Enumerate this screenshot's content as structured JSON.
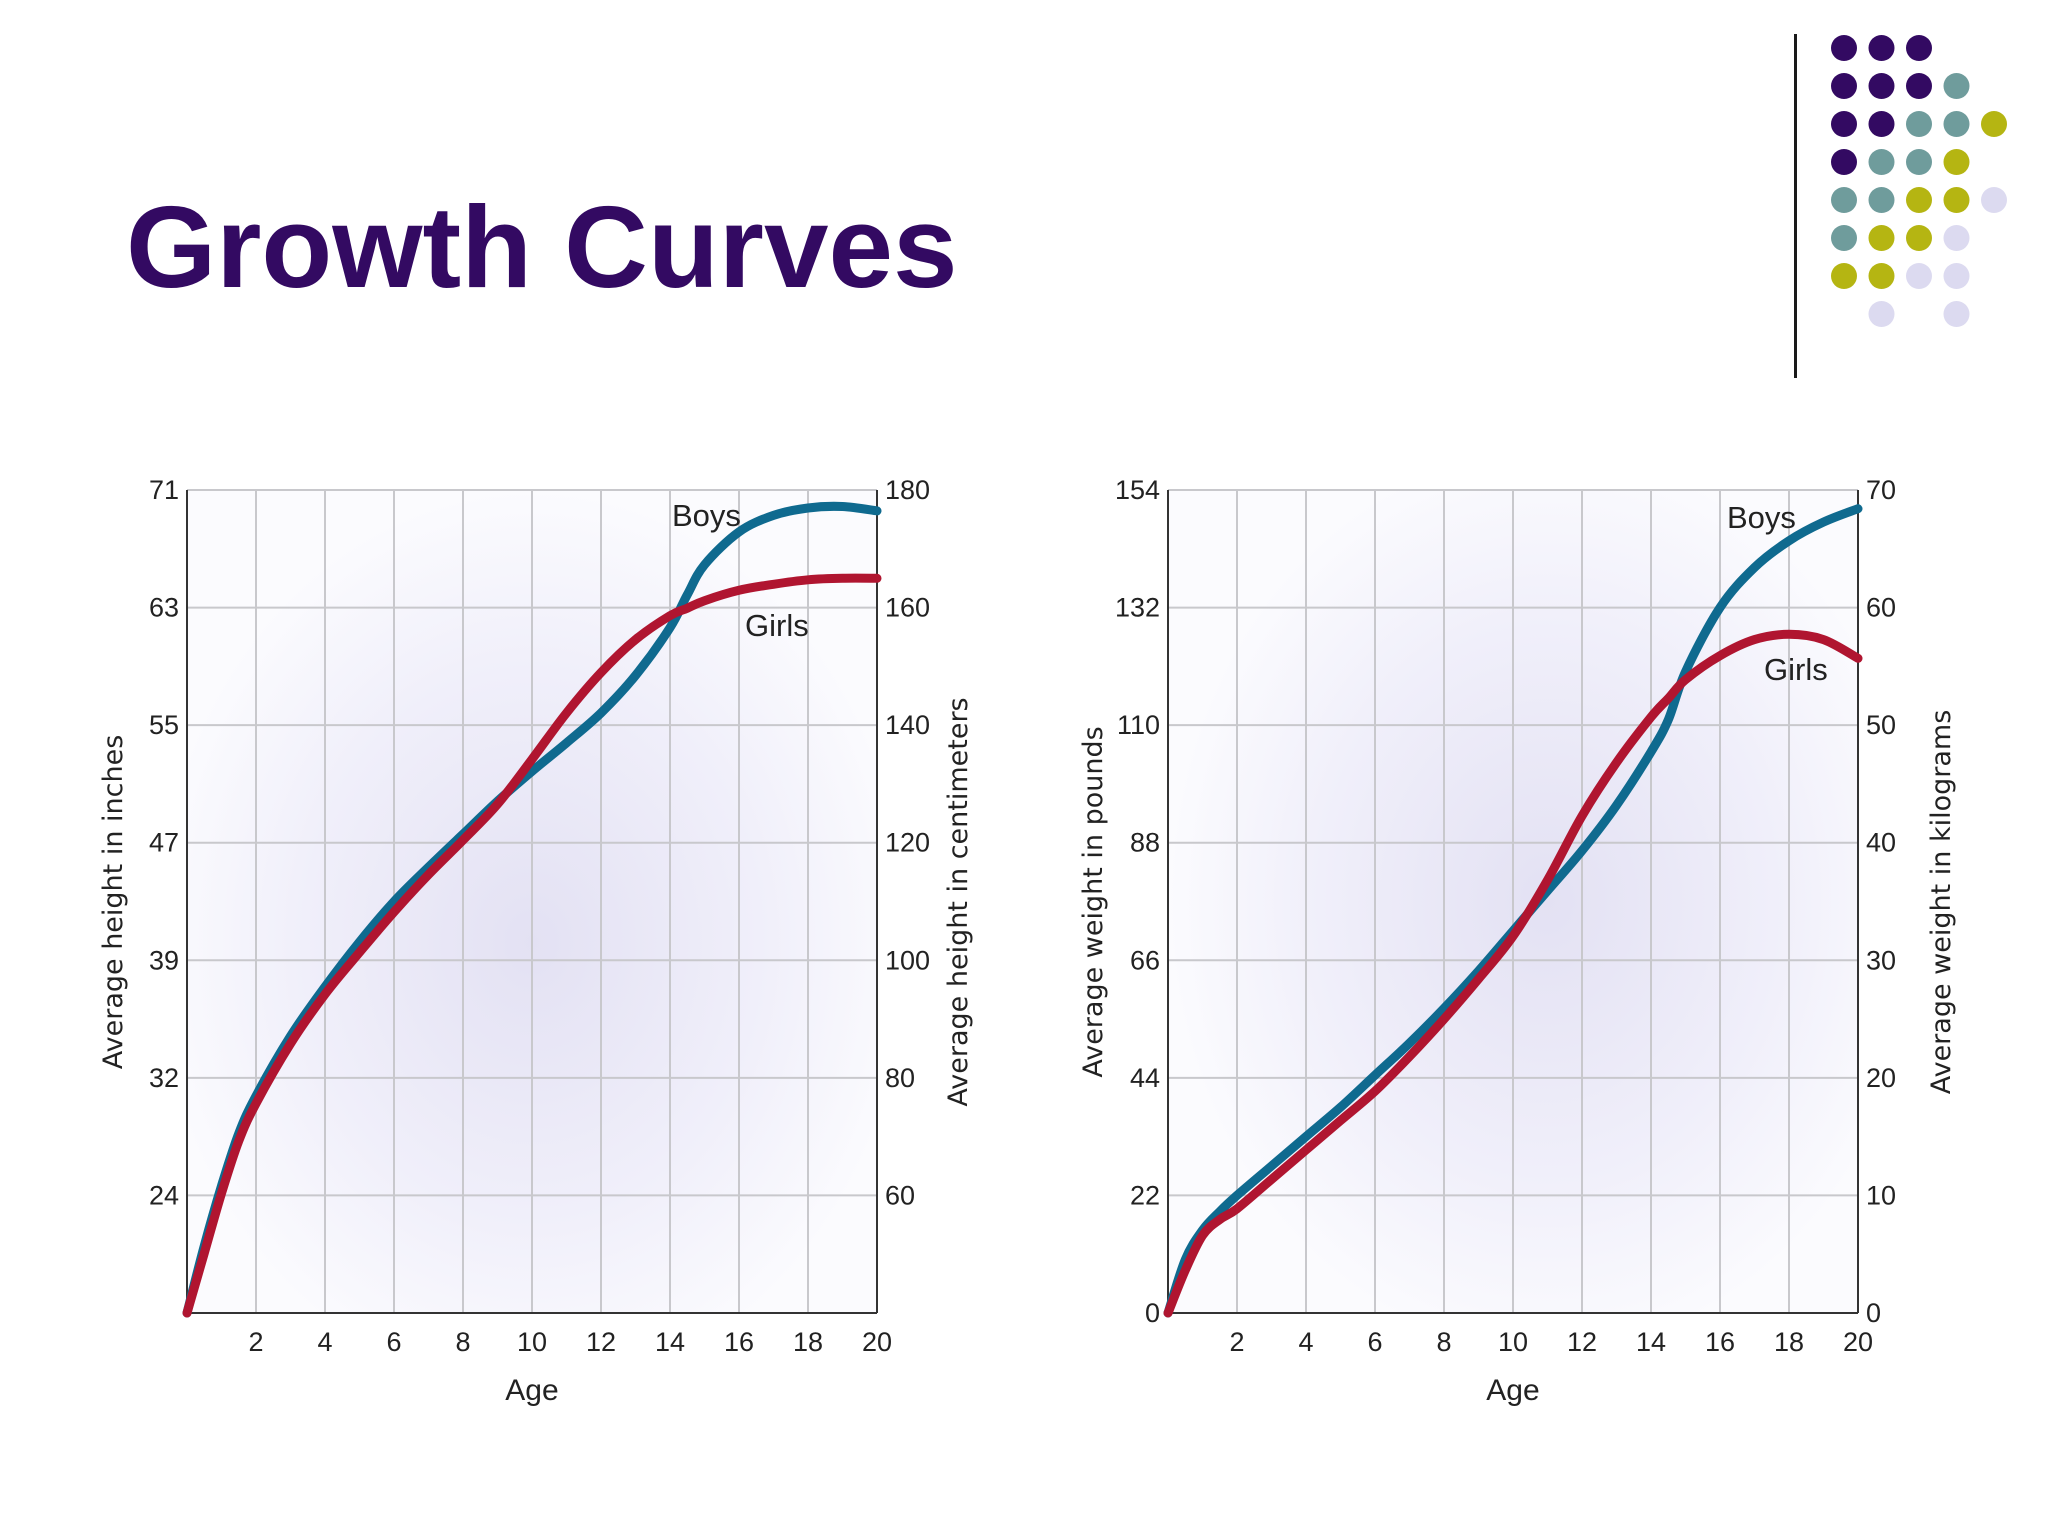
{
  "slide": {
    "title": "Growth Curves",
    "colors": {
      "title": "#330a62",
      "dot_purple": "#330a62",
      "dot_teal": "#6f9c9c",
      "dot_olive": "#b5b512",
      "dot_lavender": "#dcdaf0",
      "boys_line": "#0f6a8f",
      "girls_line": "#b01530"
    },
    "decoration": {
      "dot_rows": [
        [
          "purple",
          "purple",
          "purple",
          "",
          "",
          ""
        ],
        [
          "purple",
          "purple",
          "purple",
          "teal",
          "",
          ""
        ],
        [
          "purple",
          "purple",
          "teal",
          "teal",
          "olive",
          ""
        ],
        [
          "purple",
          "teal",
          "teal",
          "olive",
          "",
          ""
        ],
        [
          "teal",
          "teal",
          "olive",
          "olive",
          "lavender",
          ""
        ],
        [
          "teal",
          "olive",
          "olive",
          "lavender",
          "",
          ""
        ],
        [
          "olive",
          "olive",
          "lavender",
          "lavender",
          "",
          ""
        ],
        [
          "",
          "lavender",
          "",
          "lavender",
          "",
          ""
        ]
      ]
    }
  },
  "chart_data": [
    {
      "type": "line",
      "x_ticks": [
        2,
        4,
        6,
        8,
        10,
        12,
        14,
        16,
        18,
        20
      ],
      "xlim": [
        0,
        20
      ],
      "xlabel": "Age",
      "ylabel": "Average height in inches",
      "ylabel_right": "Average height in centimeters",
      "y_ticks": [
        24,
        32,
        39,
        47,
        55,
        63,
        71
      ],
      "y_ticks_right": [
        60,
        80,
        100,
        120,
        140,
        160,
        180
      ],
      "ylim": [
        16,
        71
      ],
      "grid": true,
      "series": [
        {
          "name": "Boys",
          "color": "#0f6a8f",
          "x": [
            0,
            0.5,
            1,
            1.5,
            2,
            3,
            4,
            5,
            6,
            7,
            8,
            9,
            10,
            11,
            12,
            13,
            14,
            14.5,
            15,
            16,
            17,
            18,
            19,
            20
          ],
          "y": [
            16,
            20.5,
            24.5,
            28,
            30.5,
            34.5,
            37.8,
            40.8,
            43.5,
            45.8,
            48,
            50.2,
            52.2,
            54.1,
            56.1,
            58.6,
            61.8,
            64,
            66,
            68.2,
            69.3,
            69.8,
            69.9,
            69.6
          ]
        },
        {
          "name": "Girls",
          "color": "#b01530",
          "x": [
            0,
            0.5,
            1,
            1.5,
            2,
            3,
            4,
            5,
            6,
            7,
            8,
            9,
            10,
            11,
            12,
            13,
            14,
            14.5,
            15,
            16,
            17,
            18,
            19,
            20
          ],
          "y": [
            16,
            20,
            24,
            27.5,
            30,
            34,
            37.3,
            40.1,
            42.8,
            45.3,
            47.6,
            50,
            53,
            56.1,
            58.8,
            61,
            62.6,
            63.1,
            63.6,
            64.3,
            64.7,
            65,
            65.1,
            65.1
          ]
        }
      ],
      "series_labels_visible": [
        "Boys",
        "Girls"
      ]
    },
    {
      "type": "line",
      "x_ticks": [
        2,
        4,
        6,
        8,
        10,
        12,
        14,
        16,
        18,
        20
      ],
      "xlim": [
        0,
        20
      ],
      "xlabel": "Age",
      "ylabel": "Average weight in pounds",
      "ylabel_right": "Average weight in kilograms",
      "y_ticks": [
        0,
        22,
        44,
        66,
        88,
        110,
        132,
        154
      ],
      "y_ticks_right": [
        0,
        10,
        20,
        30,
        40,
        50,
        60,
        70
      ],
      "ylim": [
        0,
        154
      ],
      "grid": true,
      "series": [
        {
          "name": "Boys",
          "color": "#0f6a8f",
          "x": [
            0,
            0.5,
            1,
            1.5,
            2,
            3,
            4,
            5,
            6,
            7,
            8,
            9,
            10,
            11,
            12,
            13,
            14,
            14.5,
            15,
            16,
            17,
            18,
            19,
            20
          ],
          "y": [
            0,
            10,
            15.5,
            19,
            22,
            27.5,
            33,
            38.5,
            44.5,
            50.5,
            57,
            64,
            71.5,
            79,
            86.5,
            95,
            105,
            111,
            120,
            132,
            139.5,
            144.5,
            148,
            150.5
          ]
        },
        {
          "name": "Girls",
          "color": "#b01530",
          "x": [
            0,
            0.5,
            1,
            1.5,
            2,
            3,
            4,
            5,
            6,
            7,
            8,
            9,
            10,
            11,
            12,
            13,
            14,
            14.5,
            15,
            16,
            17,
            18,
            19,
            20
          ],
          "y": [
            0,
            8,
            14.5,
            17.5,
            19.5,
            25,
            30.5,
            36,
            41.5,
            48,
            55,
            62.5,
            70.5,
            81,
            93,
            103,
            111.5,
            115,
            118.5,
            123,
            126,
            127,
            126,
            122.5
          ]
        }
      ],
      "series_labels_visible": [
        "Boys",
        "Girls"
      ]
    }
  ]
}
